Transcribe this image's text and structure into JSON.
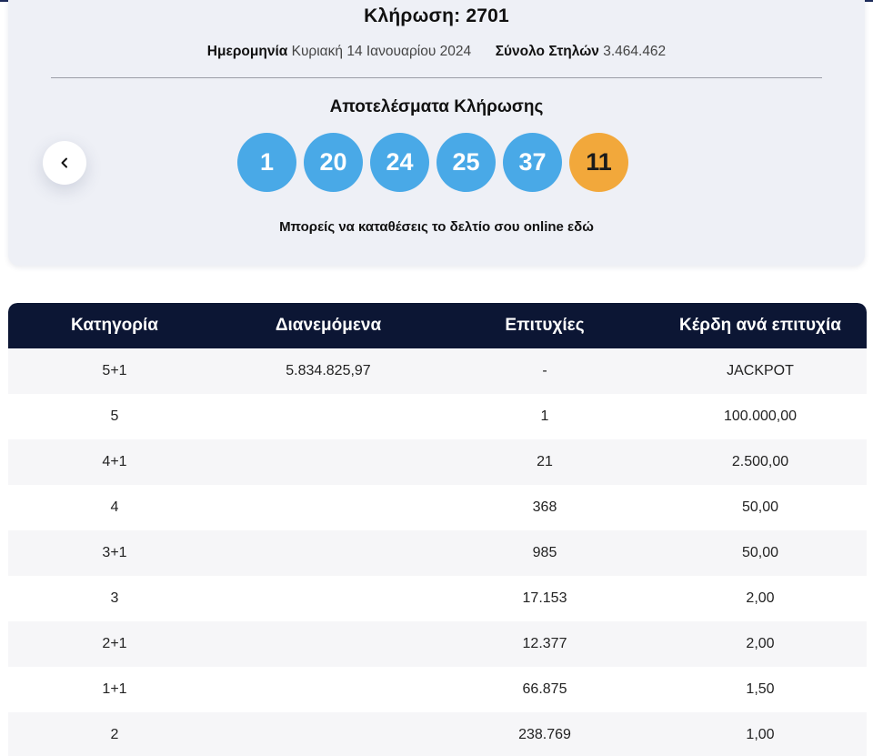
{
  "draw": {
    "title": "Κλήρωση: 2701",
    "date_label": "Ημερομηνία",
    "date_value": "Κυριακή 14 Ιανουαρίου 2024",
    "columns_label": "Σύνολο Στηλών",
    "columns_value": "3.464.462",
    "results_title": "Αποτελέσματα Κλήρωσης",
    "numbers": [
      "1",
      "20",
      "24",
      "25",
      "37"
    ],
    "joker": "11",
    "online_text": "Μπορείς να καταθέσεις το δελτίο σου online",
    "online_link": "εδώ",
    "prev_icon": "chevron-left-icon"
  },
  "colors": {
    "ball_main": "#49a9e7",
    "ball_joker": "#f2a83b",
    "table_header": "#0c1634"
  },
  "table": {
    "headers": [
      "Κατηγορία",
      "Διανεμόμενα",
      "Επιτυχίες",
      "Κέρδη ανά επιτυχία"
    ],
    "rows": [
      [
        "5+1",
        "5.834.825,97",
        "-",
        "JACKPOT"
      ],
      [
        "5",
        "",
        "1",
        "100.000,00"
      ],
      [
        "4+1",
        "",
        "21",
        "2.500,00"
      ],
      [
        "4",
        "",
        "368",
        "50,00"
      ],
      [
        "3+1",
        "",
        "985",
        "50,00"
      ],
      [
        "3",
        "",
        "17.153",
        "2,00"
      ],
      [
        "2+1",
        "",
        "12.377",
        "2,00"
      ],
      [
        "1+1",
        "",
        "66.875",
        "1,50"
      ],
      [
        "2",
        "",
        "238.769",
        "1,00"
      ]
    ]
  }
}
